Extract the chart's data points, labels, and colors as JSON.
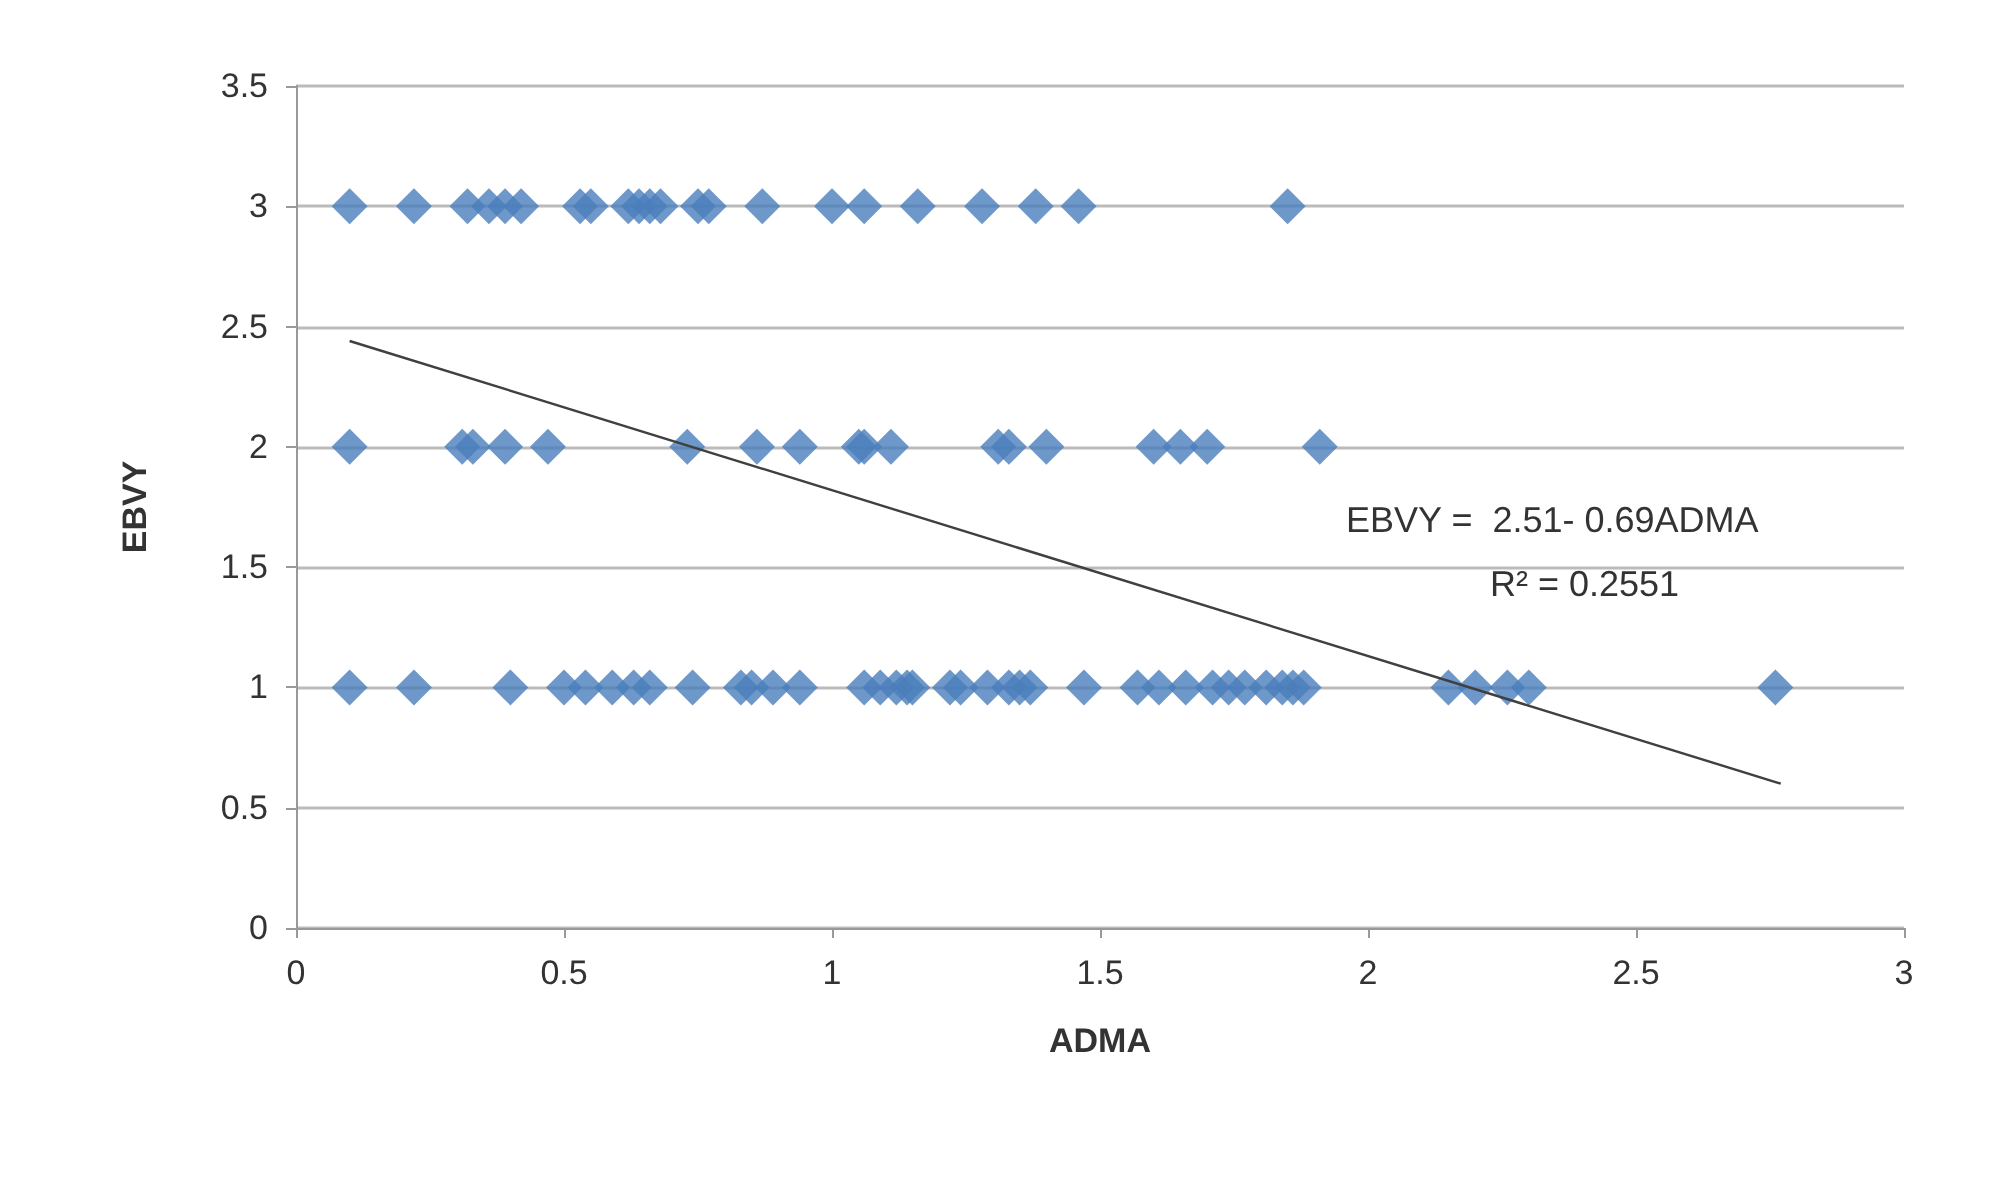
{
  "chart_data": {
    "type": "scatter",
    "xlabel": "ADMA",
    "ylabel": "EBVY",
    "xlim": [
      0,
      3
    ],
    "xticks": [
      0,
      0.5,
      1,
      1.5,
      2,
      2.5,
      3
    ],
    "ylim": [
      0,
      3.5
    ],
    "yticks": [
      0,
      0.5,
      1,
      1.5,
      2,
      2.5,
      3,
      3.5
    ],
    "grid": "y",
    "marker": "diamond",
    "series": [
      {
        "color": "#4a7ebb",
        "x": [
          0.1,
          0.22,
          0.32,
          0.36,
          0.39,
          0.42,
          0.53,
          0.55,
          0.62,
          0.64,
          0.66,
          0.68,
          0.75,
          0.77,
          0.87,
          1.0,
          1.06,
          1.16,
          1.28,
          1.38,
          1.46,
          1.85,
          0.1,
          0.31,
          0.33,
          0.39,
          0.47,
          0.73,
          0.86,
          0.94,
          1.05,
          1.06,
          1.11,
          1.31,
          1.33,
          1.4,
          1.6,
          1.65,
          1.7,
          1.91,
          0.1,
          0.22,
          0.4,
          0.5,
          0.54,
          0.59,
          0.63,
          0.66,
          0.74,
          0.83,
          0.85,
          0.89,
          0.94,
          1.06,
          1.09,
          1.12,
          1.14,
          1.15,
          1.22,
          1.24,
          1.29,
          1.33,
          1.35,
          1.37,
          1.47,
          1.57,
          1.61,
          1.66,
          1.71,
          1.74,
          1.77,
          1.81,
          1.84,
          1.86,
          1.88,
          2.15,
          2.2,
          2.26,
          2.3,
          2.76
        ],
        "values": [
          3,
          3,
          3,
          3,
          3,
          3,
          3,
          3,
          3,
          3,
          3,
          3,
          3,
          3,
          3,
          3,
          3,
          3,
          3,
          3,
          3,
          3,
          2,
          2,
          2,
          2,
          2,
          2,
          2,
          2,
          2,
          2,
          2,
          2,
          2,
          2,
          2,
          2,
          2,
          2,
          1,
          1,
          1,
          1,
          1,
          1,
          1,
          1,
          1,
          1,
          1,
          1,
          1,
          1,
          1,
          1,
          1,
          1,
          1,
          1,
          1,
          1,
          1,
          1,
          1,
          1,
          1,
          1,
          1,
          1,
          1,
          1,
          1,
          1,
          1,
          1,
          1,
          1,
          1,
          1
        ]
      },
      {
        "type": "line",
        "color": "#404040",
        "marker": "none",
        "x": [
          0.1,
          2.77
        ],
        "values": [
          2.44,
          0.6
        ]
      }
    ],
    "annotations": [
      "EBVY =  2.51- 0.69ADMA",
      "R² = 0.2551"
    ]
  }
}
